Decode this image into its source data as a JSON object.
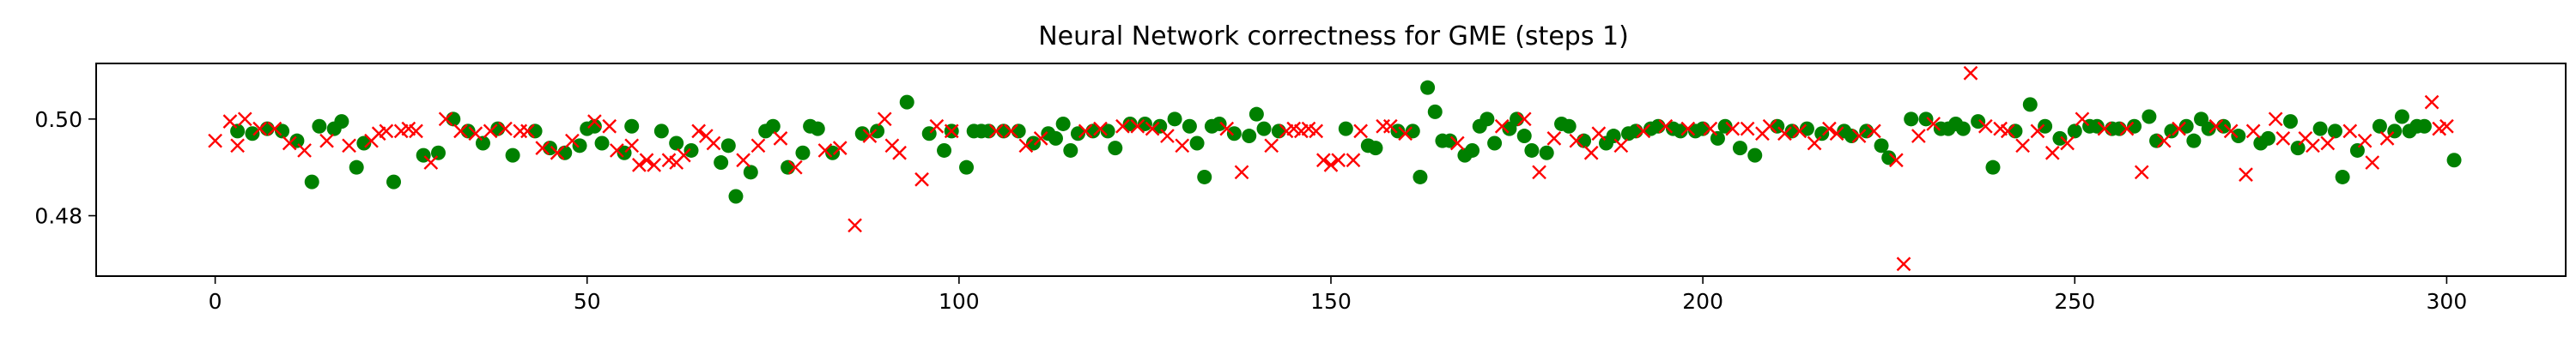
{
  "chart_data": {
    "type": "scatter",
    "title": "Neural Network correctness for GME (steps 1)",
    "xlabel": "",
    "ylabel": "",
    "xlim": [
      -16,
      316
    ],
    "ylim": [
      0.4675,
      0.5115
    ],
    "x_ticks": [
      0,
      50,
      100,
      150,
      200,
      250,
      300
    ],
    "x_tick_labels": [
      "0",
      "50",
      "100",
      "150",
      "200",
      "250",
      "300"
    ],
    "y_ticks": [
      0.48,
      0.5
    ],
    "y_tick_labels": [
      "0.48",
      "0.50"
    ],
    "grid": false,
    "legend": "none",
    "series": [
      {
        "marker": "circle",
        "color": "#008000",
        "points": [
          [
            3,
            0.4975
          ],
          [
            5,
            0.497
          ],
          [
            7,
            0.498
          ],
          [
            9,
            0.4975
          ],
          [
            11,
            0.4955
          ],
          [
            13,
            0.487
          ],
          [
            14,
            0.4985
          ],
          [
            16,
            0.498
          ],
          [
            17,
            0.4995
          ],
          [
            19,
            0.49
          ],
          [
            20,
            0.495
          ],
          [
            24,
            0.487
          ],
          [
            28,
            0.4925
          ],
          [
            30,
            0.493
          ],
          [
            32,
            0.5
          ],
          [
            34,
            0.4975
          ],
          [
            36,
            0.495
          ],
          [
            38,
            0.498
          ],
          [
            40,
            0.4925
          ],
          [
            43,
            0.4975
          ],
          [
            45,
            0.494
          ],
          [
            47,
            0.493
          ],
          [
            49,
            0.4945
          ],
          [
            50,
            0.498
          ],
          [
            51,
            0.4985
          ],
          [
            52,
            0.495
          ],
          [
            55,
            0.493
          ],
          [
            56,
            0.4985
          ],
          [
            60,
            0.4975
          ],
          [
            62,
            0.495
          ],
          [
            64,
            0.4935
          ],
          [
            68,
            0.491
          ],
          [
            69,
            0.4945
          ],
          [
            70,
            0.484
          ],
          [
            72,
            0.489
          ],
          [
            74,
            0.4975
          ],
          [
            75,
            0.4985
          ],
          [
            77,
            0.49
          ],
          [
            79,
            0.493
          ],
          [
            80,
            0.4985
          ],
          [
            81,
            0.498
          ],
          [
            83,
            0.493
          ],
          [
            87,
            0.497
          ],
          [
            89,
            0.4975
          ],
          [
            93,
            0.5035
          ],
          [
            96,
            0.497
          ],
          [
            98,
            0.4935
          ],
          [
            99,
            0.4975
          ],
          [
            101,
            0.49
          ],
          [
            102,
            0.4975
          ],
          [
            103,
            0.4975
          ],
          [
            104,
            0.4975
          ],
          [
            106,
            0.4975
          ],
          [
            108,
            0.4975
          ],
          [
            110,
            0.495
          ],
          [
            112,
            0.497
          ],
          [
            113,
            0.496
          ],
          [
            114,
            0.499
          ],
          [
            115,
            0.4935
          ],
          [
            116,
            0.497
          ],
          [
            118,
            0.4975
          ],
          [
            120,
            0.4975
          ],
          [
            121,
            0.494
          ],
          [
            123,
            0.499
          ],
          [
            125,
            0.499
          ],
          [
            127,
            0.4985
          ],
          [
            129,
            0.5
          ],
          [
            131,
            0.4985
          ],
          [
            132,
            0.495
          ],
          [
            133,
            0.488
          ],
          [
            134,
            0.4985
          ],
          [
            135,
            0.499
          ],
          [
            137,
            0.497
          ],
          [
            139,
            0.4965
          ],
          [
            140,
            0.501
          ],
          [
            141,
            0.498
          ],
          [
            143,
            0.4975
          ],
          [
            152,
            0.498
          ],
          [
            155,
            0.4945
          ],
          [
            156,
            0.494
          ],
          [
            159,
            0.4975
          ],
          [
            161,
            0.4975
          ],
          [
            162,
            0.488
          ],
          [
            163,
            0.5065
          ],
          [
            164,
            0.5015
          ],
          [
            165,
            0.4955
          ],
          [
            166,
            0.4955
          ],
          [
            168,
            0.4925
          ],
          [
            169,
            0.4935
          ],
          [
            170,
            0.4985
          ],
          [
            171,
            0.5
          ],
          [
            172,
            0.495
          ],
          [
            174,
            0.498
          ],
          [
            175,
            0.5
          ],
          [
            176,
            0.4965
          ],
          [
            177,
            0.4935
          ],
          [
            179,
            0.493
          ],
          [
            181,
            0.499
          ],
          [
            182,
            0.4985
          ],
          [
            184,
            0.4955
          ],
          [
            187,
            0.495
          ],
          [
            188,
            0.4965
          ],
          [
            190,
            0.497
          ],
          [
            191,
            0.4975
          ],
          [
            193,
            0.498
          ],
          [
            194,
            0.4985
          ],
          [
            196,
            0.498
          ],
          [
            197,
            0.4975
          ],
          [
            199,
            0.4975
          ],
          [
            200,
            0.498
          ],
          [
            202,
            0.496
          ],
          [
            203,
            0.4985
          ],
          [
            205,
            0.494
          ],
          [
            207,
            0.4925
          ],
          [
            210,
            0.4985
          ],
          [
            212,
            0.4975
          ],
          [
            214,
            0.498
          ],
          [
            216,
            0.497
          ],
          [
            219,
            0.4975
          ],
          [
            220,
            0.4965
          ],
          [
            222,
            0.4975
          ],
          [
            224,
            0.4945
          ],
          [
            225,
            0.492
          ],
          [
            228,
            0.5
          ],
          [
            230,
            0.5
          ],
          [
            232,
            0.498
          ],
          [
            233,
            0.498
          ],
          [
            234,
            0.499
          ],
          [
            235,
            0.498
          ],
          [
            237,
            0.4995
          ],
          [
            239,
            0.49
          ],
          [
            242,
            0.4975
          ],
          [
            244,
            0.503
          ],
          [
            246,
            0.4985
          ],
          [
            248,
            0.496
          ],
          [
            250,
            0.4975
          ],
          [
            252,
            0.4985
          ],
          [
            253,
            0.4985
          ],
          [
            255,
            0.498
          ],
          [
            256,
            0.498
          ],
          [
            258,
            0.4985
          ],
          [
            260,
            0.5005
          ],
          [
            261,
            0.4955
          ],
          [
            263,
            0.4975
          ],
          [
            265,
            0.4985
          ],
          [
            266,
            0.4955
          ],
          [
            267,
            0.5
          ],
          [
            268,
            0.498
          ],
          [
            270,
            0.4985
          ],
          [
            272,
            0.4965
          ],
          [
            275,
            0.495
          ],
          [
            276,
            0.496
          ],
          [
            279,
            0.4995
          ],
          [
            280,
            0.494
          ],
          [
            283,
            0.498
          ],
          [
            285,
            0.4975
          ],
          [
            286,
            0.488
          ],
          [
            288,
            0.4935
          ],
          [
            291,
            0.4985
          ],
          [
            293,
            0.4975
          ],
          [
            294,
            0.5005
          ],
          [
            295,
            0.4975
          ],
          [
            296,
            0.4985
          ],
          [
            297,
            0.4985
          ],
          [
            301,
            0.4915
          ]
        ]
      },
      {
        "marker": "x",
        "color": "#ff0000",
        "points": [
          [
            0,
            0.4955
          ],
          [
            2,
            0.4995
          ],
          [
            3,
            0.4945
          ],
          [
            4,
            0.5
          ],
          [
            6,
            0.498
          ],
          [
            8,
            0.498
          ],
          [
            10,
            0.495
          ],
          [
            12,
            0.4935
          ],
          [
            15,
            0.4955
          ],
          [
            18,
            0.4945
          ],
          [
            21,
            0.4955
          ],
          [
            22,
            0.497
          ],
          [
            23,
            0.4975
          ],
          [
            25,
            0.4975
          ],
          [
            26,
            0.498
          ],
          [
            27,
            0.4975
          ],
          [
            29,
            0.491
          ],
          [
            31,
            0.5
          ],
          [
            33,
            0.4975
          ],
          [
            35,
            0.497
          ],
          [
            37,
            0.4975
          ],
          [
            39,
            0.498
          ],
          [
            41,
            0.4975
          ],
          [
            42,
            0.4975
          ],
          [
            44,
            0.494
          ],
          [
            46,
            0.493
          ],
          [
            48,
            0.4955
          ],
          [
            51,
            0.4995
          ],
          [
            53,
            0.4985
          ],
          [
            54,
            0.4935
          ],
          [
            56,
            0.4945
          ],
          [
            57,
            0.4905
          ],
          [
            58,
            0.4915
          ],
          [
            59,
            0.4905
          ],
          [
            61,
            0.4915
          ],
          [
            62,
            0.491
          ],
          [
            63,
            0.4925
          ],
          [
            65,
            0.4975
          ],
          [
            66,
            0.4965
          ],
          [
            67,
            0.495
          ],
          [
            71,
            0.4915
          ],
          [
            73,
            0.4945
          ],
          [
            76,
            0.496
          ],
          [
            78,
            0.49
          ],
          [
            82,
            0.4935
          ],
          [
            84,
            0.494
          ],
          [
            86,
            0.478
          ],
          [
            88,
            0.4965
          ],
          [
            90,
            0.5
          ],
          [
            91,
            0.4945
          ],
          [
            92,
            0.493
          ],
          [
            95,
            0.4875
          ],
          [
            97,
            0.4985
          ],
          [
            99,
            0.4975
          ],
          [
            105,
            0.4975
          ],
          [
            107,
            0.4975
          ],
          [
            109,
            0.4945
          ],
          [
            111,
            0.496
          ],
          [
            117,
            0.4975
          ],
          [
            119,
            0.498
          ],
          [
            122,
            0.4985
          ],
          [
            124,
            0.4985
          ],
          [
            126,
            0.498
          ],
          [
            128,
            0.4965
          ],
          [
            130,
            0.4945
          ],
          [
            136,
            0.498
          ],
          [
            138,
            0.489
          ],
          [
            142,
            0.4945
          ],
          [
            144,
            0.4975
          ],
          [
            145,
            0.498
          ],
          [
            146,
            0.4975
          ],
          [
            147,
            0.498
          ],
          [
            148,
            0.4975
          ],
          [
            149,
            0.4915
          ],
          [
            150,
            0.4905
          ],
          [
            151,
            0.4915
          ],
          [
            153,
            0.4915
          ],
          [
            154,
            0.4975
          ],
          [
            157,
            0.4985
          ],
          [
            158,
            0.4985
          ],
          [
            160,
            0.497
          ],
          [
            167,
            0.495
          ],
          [
            173,
            0.4985
          ],
          [
            176,
            0.5
          ],
          [
            178,
            0.489
          ],
          [
            180,
            0.496
          ],
          [
            183,
            0.4955
          ],
          [
            185,
            0.493
          ],
          [
            186,
            0.497
          ],
          [
            189,
            0.4945
          ],
          [
            192,
            0.4975
          ],
          [
            195,
            0.4985
          ],
          [
            198,
            0.498
          ],
          [
            201,
            0.498
          ],
          [
            204,
            0.498
          ],
          [
            206,
            0.498
          ],
          [
            208,
            0.497
          ],
          [
            209,
            0.4985
          ],
          [
            211,
            0.497
          ],
          [
            213,
            0.4975
          ],
          [
            215,
            0.495
          ],
          [
            217,
            0.498
          ],
          [
            218,
            0.497
          ],
          [
            221,
            0.4965
          ],
          [
            223,
            0.4975
          ],
          [
            226,
            0.4915
          ],
          [
            227,
            0.47
          ],
          [
            229,
            0.4965
          ],
          [
            231,
            0.499
          ],
          [
            236,
            0.5095
          ],
          [
            238,
            0.4985
          ],
          [
            240,
            0.498
          ],
          [
            241,
            0.4975
          ],
          [
            243,
            0.4945
          ],
          [
            245,
            0.4975
          ],
          [
            247,
            0.493
          ],
          [
            249,
            0.495
          ],
          [
            251,
            0.5
          ],
          [
            254,
            0.498
          ],
          [
            257,
            0.498
          ],
          [
            259,
            0.489
          ],
          [
            262,
            0.4955
          ],
          [
            264,
            0.498
          ],
          [
            269,
            0.4985
          ],
          [
            271,
            0.4975
          ],
          [
            273,
            0.4885
          ],
          [
            274,
            0.4975
          ],
          [
            277,
            0.5
          ],
          [
            278,
            0.496
          ],
          [
            281,
            0.496
          ],
          [
            282,
            0.4945
          ],
          [
            284,
            0.495
          ],
          [
            287,
            0.4975
          ],
          [
            289,
            0.4955
          ],
          [
            290,
            0.491
          ],
          [
            292,
            0.496
          ],
          [
            298,
            0.5035
          ],
          [
            299,
            0.498
          ],
          [
            300,
            0.4985
          ]
        ]
      }
    ]
  }
}
